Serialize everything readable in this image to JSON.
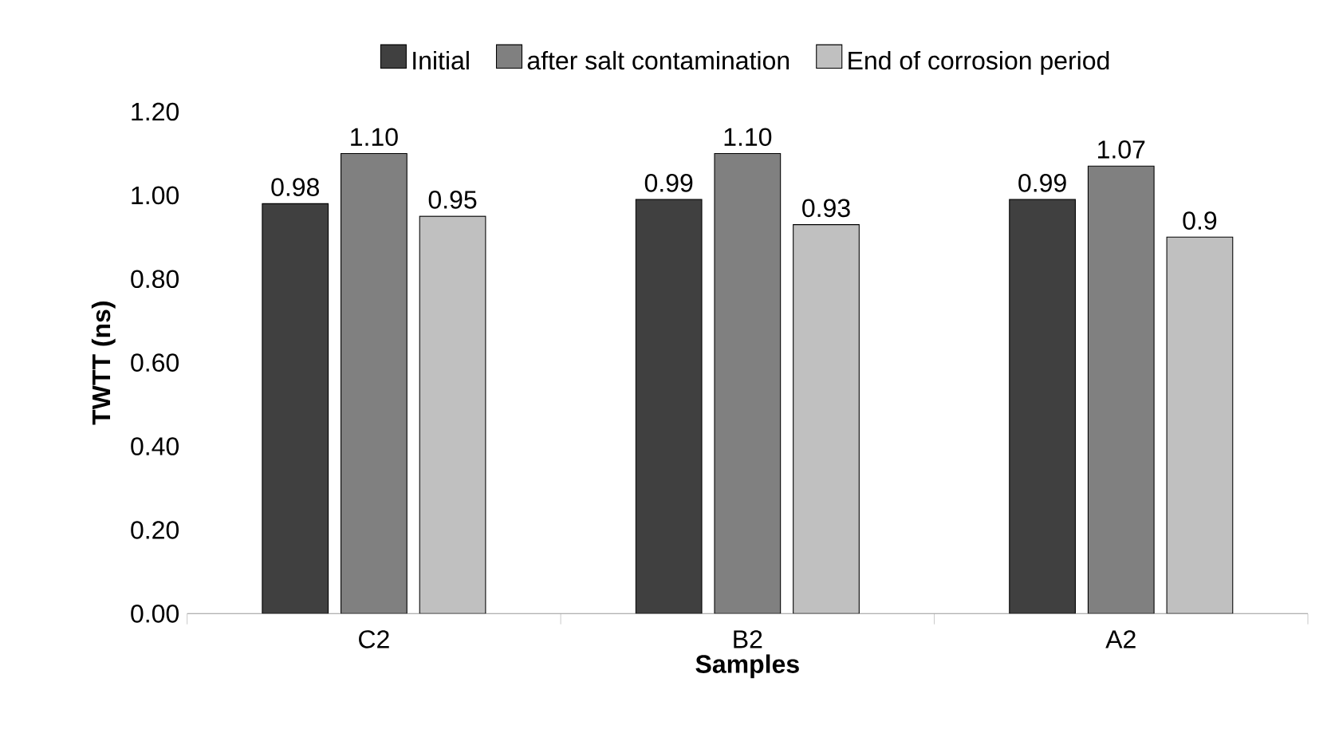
{
  "chart_data": {
    "type": "bar",
    "xlabel": "Samples",
    "ylabel": "TWTT (ns)",
    "categories": [
      "C2",
      "B2",
      "A2"
    ],
    "series": [
      {
        "name": "Initial",
        "color": "#404040",
        "values": [
          0.98,
          0.99,
          0.99
        ],
        "value_labels": [
          "0.98",
          "0.99",
          "0.99"
        ]
      },
      {
        "name": "after salt contamination",
        "color": "#808080",
        "values": [
          1.1,
          1.1,
          1.07
        ],
        "value_labels": [
          "1.10",
          "1.10",
          "1.07"
        ]
      },
      {
        "name": "End of corrosion period",
        "color": "#c0c0c0",
        "values": [
          0.95,
          0.93,
          0.9
        ],
        "value_labels": [
          "0.95",
          "0.93",
          "0.9"
        ]
      }
    ],
    "ylim": [
      0,
      1.2
    ],
    "yticks": [
      {
        "value": 0,
        "label": "0.00"
      },
      {
        "value": 0.2,
        "label": "0.20"
      },
      {
        "value": 0.4,
        "label": "0.40"
      },
      {
        "value": 0.6,
        "label": "0.60"
      },
      {
        "value": 0.8,
        "label": "0.80"
      },
      {
        "value": 1.0,
        "label": "1.00"
      },
      {
        "value": 1.2,
        "label": "1.20"
      }
    ],
    "grid": false,
    "legend": "top"
  }
}
